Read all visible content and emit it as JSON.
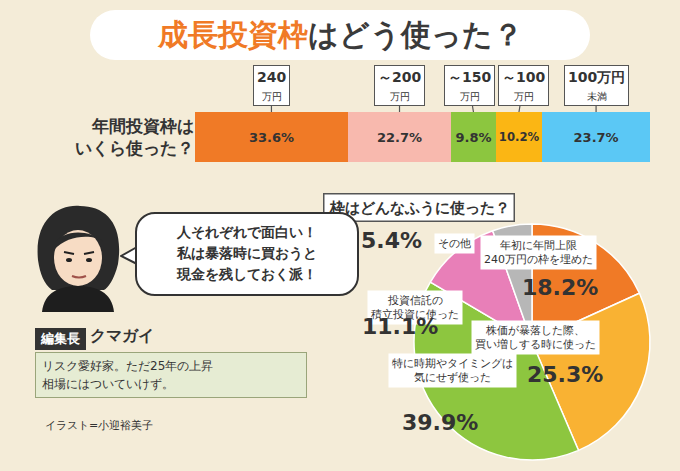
{
  "title": "成長投資枠はどう使った？",
  "title_highlight": "成長投資枠",
  "chart_data": [
    {
      "type": "bar",
      "orientation": "horizontal",
      "stacked": true,
      "categories": [
        "年間投資枠は\nいくら使った？"
      ],
      "series": [
        {
          "name": "240\n万円",
          "color": "#f07a26",
          "values": [
            33.6
          ],
          "value_labels": [
            "33.6%"
          ]
        },
        {
          "name": "～200\n万円",
          "color": "#f8b9ae",
          "values": [
            22.7
          ],
          "value_labels": [
            "22.7%"
          ]
        },
        {
          "name": "～150\n万円",
          "color": "#8cc63f",
          "values": [
            9.8
          ],
          "value_labels": [
            "9.8%"
          ]
        },
        {
          "name": "～100\n万円",
          "color": "#fbb614",
          "values": [
            10.2
          ],
          "value_labels": [
            "10.2%"
          ]
        },
        {
          "name": "100万円\n未満",
          "color": "#5bc8f5",
          "values": [
            23.7
          ],
          "value_labels": [
            "23.7%"
          ]
        }
      ],
      "xlim": [
        0,
        100
      ],
      "data_labels": true,
      "tick_labels": "y",
      "grid": false
    },
    {
      "type": "pie",
      "title": "枠はどんなふうに使った？",
      "categories": [
        "年初に年間上限\n240万円の枠を埋めた",
        "株価が暴落した際、\n買い増しする時に使った",
        "特に時期やタイミングは\n気にせず使った",
        "投資信託の\n積立投資に使った",
        "その他"
      ],
      "values": [
        18.2,
        25.3,
        39.9,
        11.1,
        5.4
      ],
      "value_labels": [
        "18.2%",
        "25.3%",
        "39.9%",
        "11.1%",
        "5.4%"
      ],
      "colors": [
        "#f07a26",
        "#f9b233",
        "#8dc63f",
        "#e87fb8",
        "#b7b7b7"
      ],
      "data_labels": true
    }
  ],
  "speech_bubble": "人それぞれで面白い！\n私は暴落時に買おうと\n現金を残しておく派！",
  "editor": {
    "role": "編集長",
    "name": "クマガイ",
    "description": "リスク愛好家。ただ25年の上昇\n相場にはついていけず。"
  },
  "credit": "イラスト=小迎裕美子"
}
